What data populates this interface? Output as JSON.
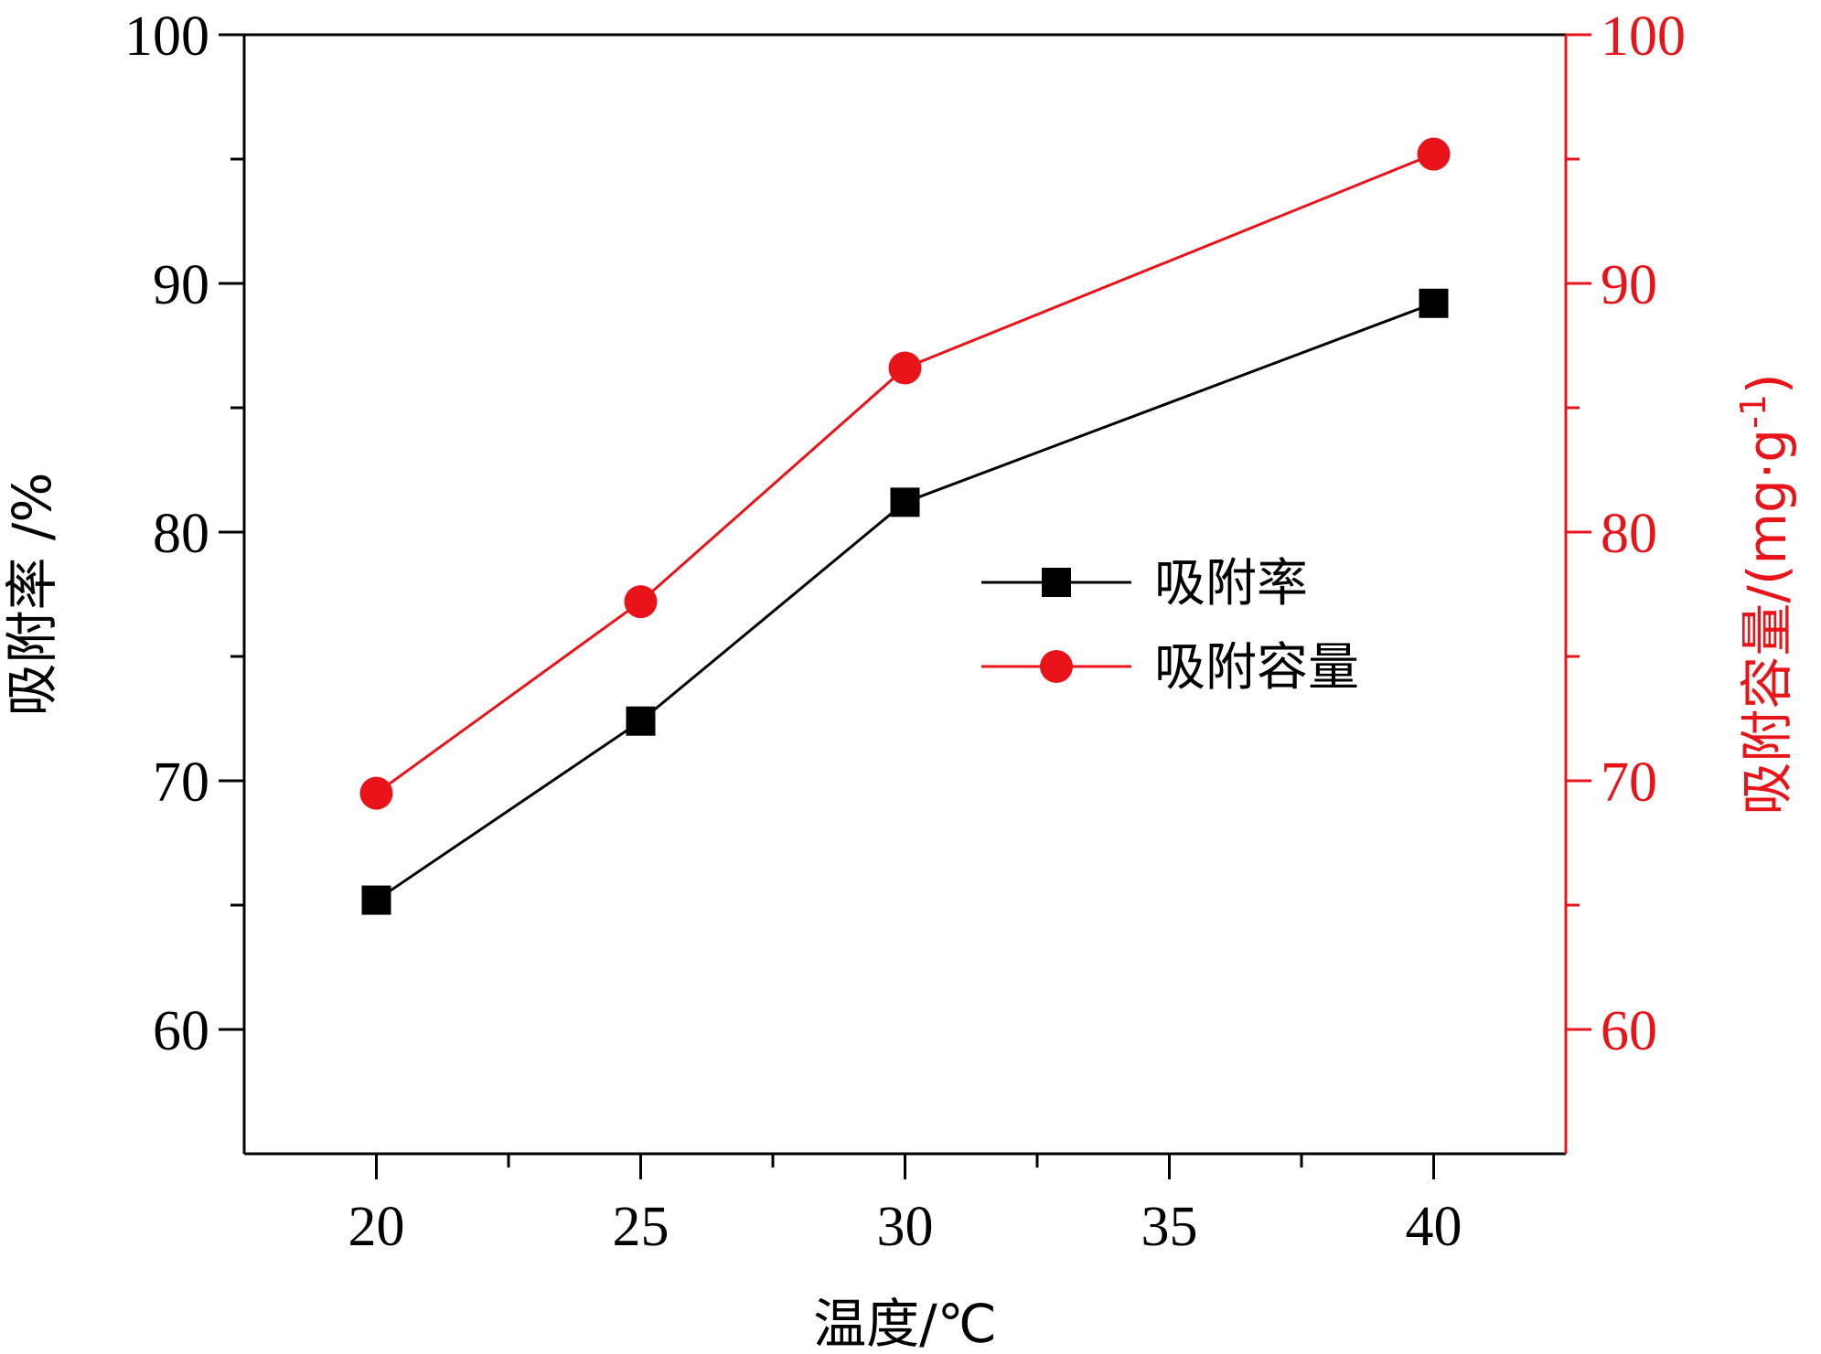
{
  "chart_data": {
    "type": "line",
    "xlabel": "温度/℃",
    "ylabel": "吸附率 /%",
    "y2label": "吸附容量/(mg·g",
    "y2label_superscript": "-1",
    "y2label_close": ")",
    "xlim": [
      17.5,
      42.5
    ],
    "ylim": [
      55,
      100
    ],
    "y2lim": [
      55,
      100
    ],
    "x_ticks": [
      20,
      25,
      30,
      35,
      40
    ],
    "x_tick_labels": [
      "20",
      "25",
      "30",
      "35",
      "40"
    ],
    "y_ticks": [
      60,
      70,
      80,
      90,
      100
    ],
    "y_tick_labels": [
      "60",
      "70",
      "80",
      "90",
      "100"
    ],
    "y2_ticks": [
      60,
      70,
      80,
      90,
      100
    ],
    "y2_tick_labels": [
      "60",
      "70",
      "80",
      "90",
      "100"
    ],
    "grid": false,
    "legend_position": "center-right",
    "colors": {
      "series1": "#000000",
      "series2": "#e8141a",
      "axis": "#000000",
      "right_axis": "#e8141a"
    },
    "series": [
      {
        "name": "吸附率",
        "axis": "left",
        "marker": "square",
        "x": [
          20,
          25,
          30,
          40
        ],
        "values": [
          65.2,
          72.4,
          81.2,
          89.2
        ]
      },
      {
        "name": "吸附容量",
        "axis": "right",
        "marker": "circle",
        "x": [
          20,
          25,
          30,
          40
        ],
        "values": [
          69.5,
          77.2,
          86.6,
          95.2
        ]
      }
    ]
  }
}
